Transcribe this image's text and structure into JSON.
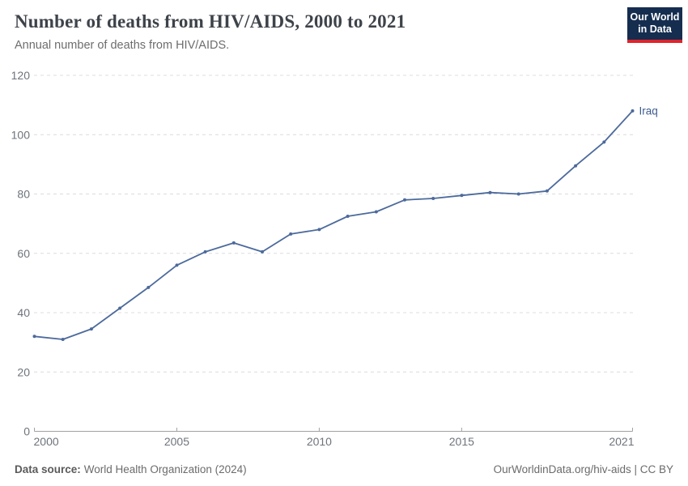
{
  "header": {
    "logo": {
      "line1": "Our World",
      "line2": "in Data",
      "bg_color": "#152d4f",
      "accent_color": "#e0232c"
    }
  },
  "chart_data": {
    "type": "line",
    "title": "Number of deaths from HIV/AIDS, 2000 to 2021",
    "subtitle": "Annual number of deaths from HIV/AIDS.",
    "x": [
      2000,
      2001,
      2002,
      2003,
      2004,
      2005,
      2006,
      2007,
      2008,
      2009,
      2010,
      2011,
      2012,
      2013,
      2014,
      2015,
      2016,
      2017,
      2018,
      2019,
      2020,
      2021
    ],
    "series": [
      {
        "name": "Iraq",
        "color": "#4C6A9C",
        "label_color": "#3D5C8F",
        "values": [
          32,
          31,
          34.5,
          41.5,
          48.5,
          56,
          60.5,
          63.5,
          60.5,
          66.5,
          68,
          72.5,
          74,
          78,
          78.5,
          79.5,
          80.5,
          80,
          81,
          89.5,
          97.5,
          108
        ]
      }
    ],
    "xlim": [
      2000,
      2021
    ],
    "ylim": [
      0,
      120
    ],
    "yticks": [
      0,
      20,
      40,
      60,
      80,
      100,
      120
    ],
    "xticks": [
      2000,
      2005,
      2010,
      2015,
      2021
    ],
    "xlabel": "",
    "ylabel": "",
    "grid": "horizontal-dashed",
    "grid_color": "#dcdcdc",
    "axis_color": "#a1a1a1",
    "tick_label_color": "#6e747c",
    "legend": "line-end-label"
  },
  "footer": {
    "source_label": "Data source:",
    "source_value": "World Health Organization (2024)",
    "credit": "OurWorldinData.org/hiv-aids | CC BY"
  }
}
